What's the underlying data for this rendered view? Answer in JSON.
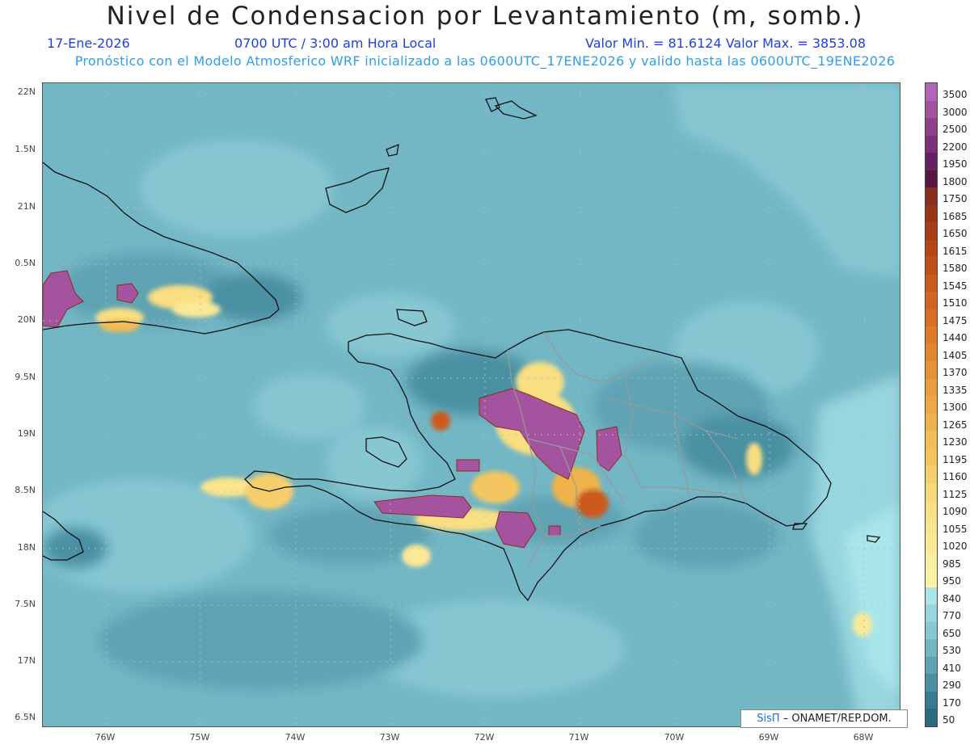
{
  "title": "Nivel de Condensacion por Levantamiento (m, somb.)",
  "date": "17-Ene-2026",
  "time": "0700 UTC / 3:00 am Hora Local",
  "minmax": "Valor Min. = 81.6124   Valor Max. = 3853.08",
  "model_line": "Pronóstico con el Modelo Atmosferico WRF inicializado a las 0600UTC_17ENE2026 y valido hasta las  0600UTC_19ENE2026",
  "lat_labels": [
    "22N",
    "1.5N",
    "21N",
    "0.5N",
    "20N",
    "9.5N",
    "19N",
    "8.5N",
    "18N",
    "7.5N",
    "17N",
    "6.5N"
  ],
  "lon_labels": [
    "76W",
    "75W",
    "74W",
    "73W",
    "72W",
    "71W",
    "70W",
    "69W",
    "68W"
  ],
  "colorbar_labels": [
    "3500",
    "3000",
    "2500",
    "2200",
    "1950",
    "1800",
    "1750",
    "1685",
    "1650",
    "1615",
    "1580",
    "1545",
    "1510",
    "1475",
    "1440",
    "1405",
    "1370",
    "1335",
    "1300",
    "1265",
    "1230",
    "1195",
    "1160",
    "1125",
    "1090",
    "1055",
    "1020",
    "985",
    "950",
    "840",
    "770",
    "650",
    "530",
    "410",
    "290",
    "170",
    "50"
  ],
  "colorbar_colors": [
    "#b264b8",
    "#a4549f",
    "#8e3f8c",
    "#7c2f7a",
    "#6a2064",
    "#5a1442",
    "#8a2e1e",
    "#9b3518",
    "#aa3d16",
    "#b84516",
    "#c44f18",
    "#cc5a1c",
    "#d46420",
    "#db6e24",
    "#e07a28",
    "#e4862e",
    "#e89234",
    "#eb9d3a",
    "#eea842",
    "#f0b24a",
    "#f3bc54",
    "#f5c65e",
    "#f7cf6a",
    "#f8d776",
    "#f9de82",
    "#fae48c",
    "#fbe996",
    "#fcee9f",
    "#fdf3a8",
    "#a9e6ea",
    "#97d6de",
    "#86c7d2",
    "#73b6c4",
    "#5ea3b4",
    "#4a90a3",
    "#377d92",
    "#2a6b80"
  ],
  "credit_sis": "SisΠ",
  "credit_text": " – ONAMET/REP.DOM."
}
